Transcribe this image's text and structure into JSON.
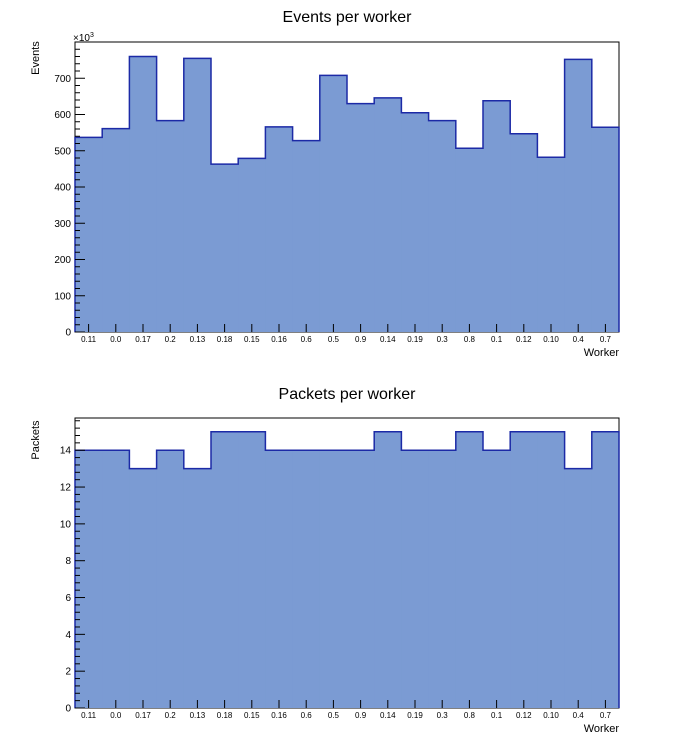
{
  "chart_data": [
    {
      "type": "bar",
      "title": "Events per worker",
      "xlabel": "Worker",
      "ylabel": "Events",
      "y_exponent_label": "×10",
      "y_exponent_power": "3",
      "categories": [
        "0.11",
        "0.0",
        "0.17",
        "0.2",
        "0.13",
        "0.18",
        "0.15",
        "0.16",
        "0.6",
        "0.5",
        "0.9",
        "0.14",
        "0.19",
        "0.3",
        "0.8",
        "0.1",
        "0.12",
        "0.10",
        "0.4",
        "0.7"
      ],
      "values": [
        537,
        561,
        760,
        583,
        755,
        463,
        479,
        566,
        528,
        708,
        630,
        646,
        605,
        583,
        507,
        638,
        547,
        482,
        752,
        565
      ],
      "ylim": [
        0,
        800
      ],
      "yticks": [
        0,
        100,
        200,
        300,
        400,
        500,
        600,
        700
      ],
      "fill_color": "#7b9bd3",
      "line_color": "#1c2aa6",
      "grid": false
    },
    {
      "type": "bar",
      "title": "Packets per worker",
      "xlabel": "Worker",
      "ylabel": "Packets",
      "categories": [
        "0.11",
        "0.0",
        "0.17",
        "0.2",
        "0.13",
        "0.18",
        "0.15",
        "0.16",
        "0.6",
        "0.5",
        "0.9",
        "0.14",
        "0.19",
        "0.3",
        "0.8",
        "0.1",
        "0.12",
        "0.10",
        "0.4",
        "0.7"
      ],
      "values": [
        14,
        14,
        13,
        14,
        13,
        15,
        15,
        14,
        14,
        14,
        14,
        15,
        14,
        14,
        15,
        14,
        15,
        15,
        13,
        15
      ],
      "ylim": [
        0,
        15.75
      ],
      "yticks": [
        0,
        2,
        4,
        6,
        8,
        10,
        12,
        14
      ],
      "fill_color": "#7b9bd3",
      "line_color": "#1c2aa6",
      "grid": false
    }
  ]
}
